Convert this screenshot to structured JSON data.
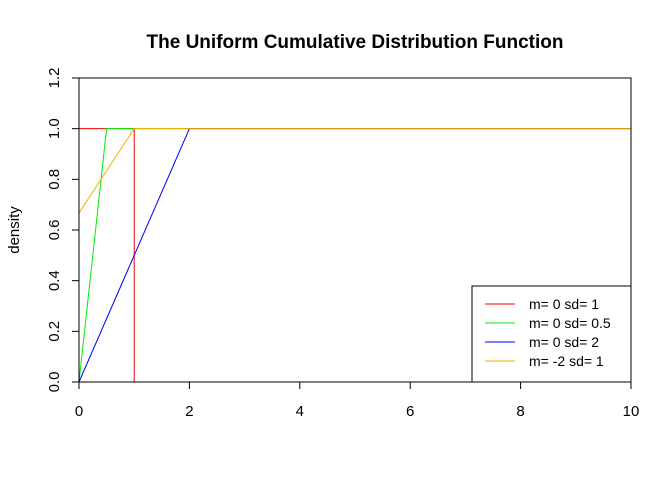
{
  "chart_data": {
    "type": "line",
    "title": "The Uniform Cumulative Distribution Function",
    "xlabel": "",
    "ylabel": "density",
    "xlim": [
      0,
      10
    ],
    "ylim": [
      0,
      1.2
    ],
    "x_ticks": [
      0,
      2,
      4,
      6,
      8,
      10
    ],
    "x_tick_labels": [
      "0",
      "2",
      "4",
      "6",
      "8",
      "10"
    ],
    "y_ticks": [
      0,
      0.2,
      0.4,
      0.6,
      0.8,
      1.0,
      1.2
    ],
    "y_tick_labels": [
      "0.0",
      "0.2",
      "0.4",
      "0.6",
      "0.8",
      "1.0",
      "1.2"
    ],
    "grid": false,
    "legend_position": "bottom-right",
    "series": [
      {
        "name": "m= 0  sd= 1",
        "color": "#ff0000",
        "x": [
          0,
          1,
          1,
          10
        ],
        "y": [
          1,
          1,
          0,
          0
        ]
      },
      {
        "name": "m= 0  sd= 0.5",
        "color": "#00ee00",
        "x": [
          0,
          0.5,
          10
        ],
        "y": [
          0,
          1,
          1
        ]
      },
      {
        "name": "m= 0  sd= 2",
        "color": "#0000ff",
        "x": [
          0,
          2,
          10
        ],
        "y": [
          0,
          1,
          1
        ]
      },
      {
        "name": "m= -2  sd= 1",
        "color": "#ffa500",
        "x": [
          0,
          1,
          10
        ],
        "y": [
          0.667,
          1,
          1
        ]
      }
    ]
  }
}
